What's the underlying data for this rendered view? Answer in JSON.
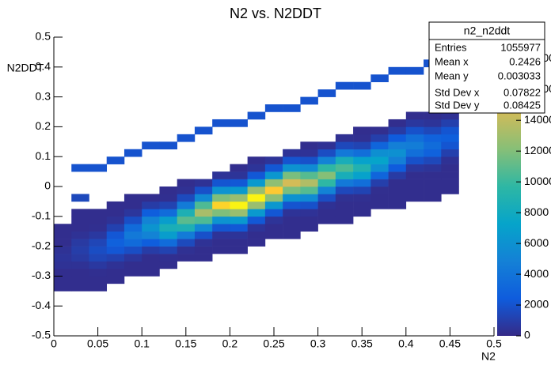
{
  "chart_data": {
    "type": "heatmap",
    "title": "N2 vs. N2DDT",
    "xlabel": "N2",
    "ylabel": "N2DDT",
    "xlim": [
      0,
      0.5
    ],
    "ylim": [
      -0.5,
      0.5
    ],
    "zlim": [
      0,
      19400
    ],
    "xticks": [
      0,
      0.05,
      0.1,
      0.15,
      0.2,
      0.25,
      0.3,
      0.35,
      0.4,
      0.45,
      0.5
    ],
    "yticks": [
      -0.5,
      -0.4,
      -0.3,
      -0.2,
      -0.1,
      0,
      0.1,
      0.2,
      0.3,
      0.4,
      0.5
    ],
    "zticks": [
      0,
      2000,
      4000,
      6000,
      8000,
      10000,
      12000,
      14000,
      16000,
      18000
    ],
    "colors": [
      "#352a87",
      "#0f5cdd",
      "#1481d6",
      "#06a4ca",
      "#2eb7a4",
      "#87bf77",
      "#d1bb59",
      "#fec832",
      "#f9fb0e"
    ],
    "xbins": [
      0,
      0.02,
      0.04,
      0.06,
      0.08,
      0.1,
      0.12,
      0.14,
      0.16,
      0.18,
      0.2,
      0.22,
      0.24,
      0.26,
      0.28,
      0.3,
      0.32,
      0.34,
      0.36,
      0.38,
      0.4,
      0.42,
      0.44,
      0.46,
      0.48,
      0.5
    ],
    "ybins": [
      -0.5,
      -0.475,
      -0.45,
      -0.425,
      -0.4,
      -0.375,
      -0.35,
      -0.325,
      -0.3,
      -0.275,
      -0.25,
      -0.225,
      -0.2,
      -0.175,
      -0.15,
      -0.125,
      -0.1,
      -0.075,
      -0.05,
      -0.025,
      0,
      0.025,
      0.05,
      0.075,
      0.1,
      0.125,
      0.15,
      0.175,
      0.2,
      0.225,
      0.25,
      0.275,
      0.3,
      0.325,
      0.35,
      0.375,
      0.4,
      0.425,
      0.45,
      0.475,
      0.5
    ],
    "z": [
      [
        null,
        null,
        null,
        null,
        null,
        null,
        200,
        200,
        200,
        400,
        500,
        400,
        200,
        200,
        200,
        null,
        null,
        null,
        null,
        null,
        null,
        null,
        null,
        null,
        null,
        null,
        null,
        null,
        null,
        null,
        null,
        null,
        null,
        null,
        null,
        null,
        null,
        null,
        null,
        null
      ],
      [
        null,
        null,
        null,
        null,
        null,
        null,
        200,
        200,
        200,
        400,
        760,
        950,
        760,
        400,
        200,
        200,
        200,
        null,
        1500,
        null,
        null,
        null,
        2000,
        null,
        null,
        null,
        null,
        null,
        null,
        null,
        null,
        null,
        null,
        null,
        null,
        null,
        null,
        null,
        null,
        null
      ],
      [
        null,
        null,
        null,
        null,
        null,
        null,
        200,
        200,
        240,
        700,
        1360,
        1700,
        1360,
        700,
        240,
        200,
        200,
        null,
        null,
        null,
        null,
        null,
        2000,
        null,
        null,
        null,
        null,
        null,
        null,
        null,
        null,
        null,
        null,
        null,
        null,
        null,
        null,
        null,
        null,
        null
      ],
      [
        null,
        null,
        null,
        null,
        null,
        null,
        null,
        200,
        200,
        390,
        1130,
        2200,
        2750,
        2200,
        1130,
        390,
        200,
        200,
        null,
        null,
        null,
        null,
        null,
        2000,
        null,
        null,
        null,
        null,
        null,
        null,
        null,
        null,
        null,
        null,
        null,
        null,
        null,
        null,
        null,
        null
      ],
      [
        null,
        null,
        null,
        null,
        null,
        null,
        null,
        null,
        200,
        200,
        600,
        1760,
        3440,
        4300,
        3440,
        1760,
        600,
        200,
        200,
        null,
        null,
        null,
        null,
        null,
        2000,
        null,
        null,
        null,
        null,
        null,
        null,
        null,
        null,
        null,
        null,
        null,
        null,
        null,
        null,
        null
      ],
      [
        null,
        null,
        null,
        null,
        null,
        null,
        null,
        null,
        200,
        200,
        200,
        870,
        2540,
        4960,
        6200,
        4960,
        2540,
        870,
        200,
        null,
        null,
        null,
        null,
        null,
        null,
        2000,
        null,
        null,
        null,
        null,
        null,
        null,
        null,
        null,
        null,
        null,
        null,
        null,
        null,
        null
      ],
      [
        null,
        null,
        null,
        null,
        null,
        null,
        null,
        null,
        null,
        200,
        260,
        1190,
        3490,
        6800,
        8500,
        6800,
        3490,
        1190,
        260,
        200,
        null,
        null,
        null,
        null,
        null,
        2000,
        null,
        null,
        null,
        null,
        null,
        null,
        null,
        null,
        null,
        null,
        null,
        null,
        null,
        null
      ],
      [
        null,
        null,
        null,
        null,
        null,
        null,
        null,
        null,
        null,
        null,
        200,
        330,
        1530,
        4470,
        8720,
        10900,
        8720,
        4470,
        1530,
        330,
        200,
        null,
        null,
        null,
        null,
        null,
        2000,
        null,
        null,
        null,
        null,
        null,
        null,
        null,
        null,
        null,
        null,
        null,
        null,
        null
      ],
      [
        null,
        null,
        null,
        null,
        null,
        null,
        null,
        null,
        null,
        null,
        200,
        200,
        400,
        1850,
        5410,
        10560,
        13200,
        10560,
        5410,
        1850,
        400,
        null,
        null,
        null,
        null,
        null,
        null,
        2000,
        null,
        null,
        null,
        null,
        null,
        null,
        null,
        null,
        null,
        null,
        null,
        null
      ],
      [
        null,
        null,
        null,
        null,
        null,
        null,
        null,
        null,
        null,
        null,
        null,
        200,
        200,
        450,
        2090,
        6110,
        11920,
        17500,
        11920,
        6110,
        2090,
        450,
        null,
        null,
        null,
        null,
        null,
        null,
        2000,
        null,
        null,
        null,
        null,
        null,
        null,
        null,
        null,
        null,
        null,
        null
      ],
      [
        null,
        null,
        null,
        null,
        null,
        null,
        null,
        null,
        null,
        null,
        null,
        200,
        200,
        480,
        2230,
        6520,
        12720,
        19000,
        12720,
        6520,
        2230,
        480,
        200,
        null,
        null,
        null,
        null,
        null,
        2000,
        null,
        null,
        null,
        null,
        null,
        null,
        null,
        null,
        null,
        null,
        null
      ],
      [
        null,
        null,
        null,
        null,
        null,
        null,
        null,
        null,
        null,
        null,
        null,
        null,
        200,
        200,
        480,
        2230,
        6520,
        12720,
        19000,
        12720,
        6520,
        2230,
        480,
        200,
        null,
        null,
        null,
        null,
        null,
        2000,
        null,
        null,
        null,
        null,
        null,
        null,
        null,
        null,
        null,
        null
      ],
      [
        null,
        null,
        null,
        null,
        null,
        null,
        null,
        null,
        null,
        null,
        null,
        null,
        null,
        200,
        200,
        470,
        2170,
        6360,
        12400,
        17000,
        12400,
        6360,
        2170,
        470,
        null,
        null,
        null,
        null,
        null,
        null,
        2000,
        null,
        null,
        null,
        null,
        null,
        null,
        null,
        null,
        null
      ],
      [
        null,
        null,
        null,
        null,
        null,
        null,
        null,
        null,
        null,
        null,
        null,
        null,
        null,
        200,
        200,
        200,
        440,
        2060,
        6030,
        11760,
        14700,
        11760,
        6030,
        2060,
        440,
        null,
        null,
        null,
        null,
        null,
        2000,
        null,
        null,
        null,
        null,
        null,
        null,
        null,
        null,
        null
      ],
      [
        null,
        null,
        null,
        null,
        null,
        null,
        null,
        null,
        null,
        null,
        null,
        null,
        null,
        null,
        200,
        200,
        410,
        1890,
        5540,
        10800,
        13500,
        10800,
        5540,
        1890,
        410,
        200,
        null,
        null,
        null,
        null,
        null,
        2000,
        null,
        null,
        null,
        null,
        null,
        null,
        null,
        null
      ],
      [
        null,
        null,
        null,
        null,
        null,
        null,
        null,
        null,
        null,
        null,
        null,
        null,
        null,
        null,
        null,
        200,
        200,
        360,
        1690,
        4960,
        9680,
        12100,
        9680,
        4960,
        1690,
        360,
        null,
        null,
        null,
        null,
        null,
        null,
        2000,
        null,
        null,
        null,
        null,
        null,
        null,
        null
      ],
      [
        null,
        null,
        null,
        null,
        null,
        null,
        null,
        null,
        null,
        null,
        null,
        null,
        null,
        null,
        null,
        200,
        200,
        200,
        320,
        1470,
        4310,
        8400,
        10500,
        8400,
        4310,
        1470,
        320,
        null,
        null,
        null,
        null,
        null,
        null,
        2000,
        null,
        null,
        null,
        null,
        null,
        null
      ],
      [
        null,
        null,
        null,
        null,
        null,
        null,
        null,
        null,
        null,
        null,
        null,
        null,
        null,
        null,
        null,
        null,
        200,
        200,
        270,
        1250,
        3650,
        7120,
        8900,
        7120,
        3650,
        1250,
        270,
        200,
        null,
        null,
        null,
        null,
        null,
        2000,
        null,
        null,
        null,
        null,
        null,
        null
      ],
      [
        null,
        null,
        null,
        null,
        null,
        null,
        null,
        null,
        null,
        null,
        null,
        null,
        null,
        null,
        null,
        null,
        null,
        200,
        200,
        220,
        1020,
        2990,
        5840,
        7300,
        5840,
        2990,
        1020,
        220,
        null,
        null,
        null,
        null,
        null,
        null,
        2000,
        null,
        null,
        null,
        null,
        null
      ],
      [
        null,
        null,
        null,
        null,
        null,
        null,
        null,
        null,
        null,
        null,
        null,
        null,
        null,
        null,
        null,
        null,
        null,
        200,
        200,
        200,
        200,
        830,
        2420,
        4720,
        5900,
        4720,
        2420,
        830,
        200,
        null,
        null,
        null,
        null,
        null,
        null,
        2000,
        null,
        null,
        null,
        null
      ],
      [
        null,
        null,
        null,
        null,
        null,
        null,
        null,
        null,
        null,
        null,
        null,
        null,
        null,
        null,
        null,
        null,
        null,
        null,
        200,
        200,
        200,
        200,
        640,
        1890,
        3680,
        4600,
        3680,
        1890,
        640,
        200,
        null,
        null,
        null,
        null,
        null,
        2000,
        null,
        null,
        null,
        null
      ],
      [
        null,
        null,
        null,
        null,
        null,
        null,
        null,
        null,
        null,
        null,
        null,
        null,
        null,
        null,
        null,
        null,
        null,
        null,
        200,
        200,
        200,
        200,
        490,
        1440,
        2800,
        3500,
        2800,
        1440,
        490,
        200,
        null,
        null,
        null,
        null,
        null,
        null,
        2000,
        null,
        null,
        null
      ],
      [
        null,
        null,
        null,
        null,
        null,
        null,
        null,
        null,
        null,
        null,
        null,
        null,
        null,
        null,
        null,
        null,
        null,
        null,
        null,
        200,
        200,
        200,
        200,
        360,
        1070,
        2080,
        2600,
        2080,
        1070,
        360,
        200,
        null,
        null,
        null,
        null,
        null,
        null,
        2000,
        null,
        null
      ],
      [
        null,
        null,
        null,
        null,
        null,
        null,
        null,
        null,
        null,
        null,
        null,
        null,
        null,
        null,
        null,
        null,
        null,
        null,
        null,
        null,
        null,
        null,
        null,
        null,
        null,
        null,
        null,
        null,
        null,
        null,
        null,
        null,
        null,
        null,
        null,
        null,
        null,
        null,
        null,
        null
      ],
      [
        null,
        null,
        null,
        null,
        null,
        null,
        null,
        null,
        null,
        null,
        null,
        null,
        null,
        null,
        null,
        null,
        null,
        null,
        null,
        null,
        null,
        null,
        null,
        null,
        null,
        null,
        null,
        null,
        null,
        null,
        null,
        null,
        null,
        null,
        null,
        null,
        null,
        null,
        null,
        null
      ]
    ],
    "stats": {
      "title": "n2_n2ddt",
      "rows": [
        {
          "label": "Entries",
          "value": 1055977
        },
        {
          "label": "Mean x",
          "value": 0.2426
        },
        {
          "label": "Mean y",
          "value": 0.003033
        },
        {
          "label": "Std Dev x",
          "value": 0.07822
        },
        {
          "label": "Std Dev y",
          "value": 0.08425
        }
      ]
    }
  }
}
